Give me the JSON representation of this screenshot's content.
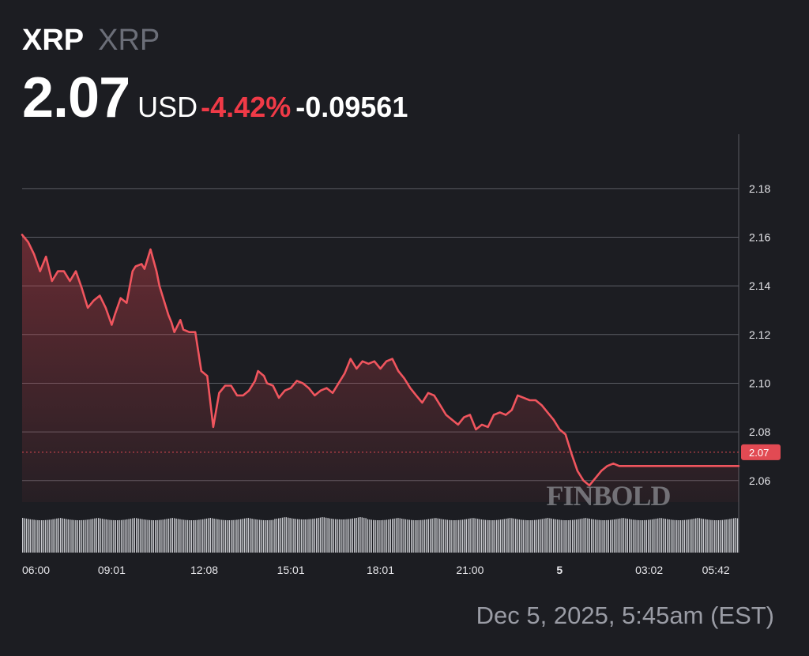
{
  "header": {
    "symbol": "XRP",
    "symbol_secondary": "XRP",
    "price": "2.07",
    "currency": "USD",
    "change_percent": "-4.42%",
    "change_absolute": "-0.09561"
  },
  "watermark": "FINBOLD",
  "timestamp": "Dec 5, 2025, 5:45am (EST)",
  "colors": {
    "background": "#1c1d22",
    "line": "#f0555e",
    "negative": "#f03a47",
    "grid": "#5a5c63",
    "volume": "#c9cacf",
    "current_price_label_bg": "#e24a53"
  },
  "chart_data": {
    "type": "line",
    "title": "",
    "xlabel": "",
    "ylabel": "",
    "ylim": [
      2.045,
      2.19
    ],
    "yticks": [
      2.06,
      2.08,
      2.1,
      2.12,
      2.14,
      2.16,
      2.18
    ],
    "ytick_labels": [
      "2.06",
      "2.08",
      "2.10",
      "2.12",
      "2.14",
      "2.16",
      "2.18"
    ],
    "xticks": [
      0,
      3.0,
      6.1,
      9.0,
      12.0,
      15.0,
      18.0,
      21.0,
      23.7
    ],
    "xtick_labels": [
      "06:00",
      "09:01",
      "12:08",
      "15:01",
      "18:01",
      "21:00",
      "5",
      "03:02",
      "05:42"
    ],
    "current_price": 2.07,
    "current_price_label": "2.07",
    "grid": true,
    "series": [
      {
        "x": [
          0,
          0.2,
          0.4,
          0.6,
          0.8,
          1.0,
          1.2,
          1.4,
          1.6,
          1.8,
          2.0,
          2.2,
          2.4,
          2.6,
          2.8,
          3.0,
          3.1,
          3.3,
          3.5,
          3.7,
          3.8,
          4.0,
          4.1,
          4.3,
          4.5,
          4.6,
          4.8,
          4.9,
          5.0,
          5.1,
          5.3,
          5.4,
          5.6,
          5.8,
          6.0,
          6.2,
          6.4,
          6.6,
          6.8,
          7.0,
          7.2,
          7.4,
          7.6,
          7.8,
          7.9,
          8.1,
          8.2,
          8.4,
          8.6,
          8.8,
          9.0,
          9.2,
          9.4,
          9.6,
          9.8,
          10.0,
          10.2,
          10.4,
          10.6,
          10.8,
          11.0,
          11.2,
          11.4,
          11.6,
          11.8,
          12.0,
          12.2,
          12.4,
          12.6,
          12.8,
          13.0,
          13.2,
          13.4,
          13.6,
          13.8,
          14.0,
          14.2,
          14.4,
          14.6,
          14.8,
          15.0,
          15.2,
          15.4,
          15.6,
          15.8,
          16.0,
          16.2,
          16.4,
          16.6,
          16.8,
          17.0,
          17.2,
          17.4,
          17.6,
          17.8,
          18.0,
          18.2,
          18.4,
          18.6,
          18.8,
          19.0,
          19.2,
          19.4,
          19.6,
          19.8,
          20.0,
          20.2,
          20.4,
          20.6,
          20.8,
          21.0,
          21.2,
          21.4,
          21.6,
          21.8,
          22.0,
          22.2,
          22.4,
          22.6,
          22.8,
          23.0,
          23.2,
          23.4,
          23.6,
          23.8,
          24.0
        ],
        "values": [
          2.161,
          2.158,
          2.153,
          2.146,
          2.152,
          2.142,
          2.146,
          2.146,
          2.142,
          2.146,
          2.139,
          2.131,
          2.134,
          2.136,
          2.131,
          2.124,
          2.128,
          2.135,
          2.133,
          2.146,
          2.148,
          2.149,
          2.147,
          2.155,
          2.146,
          2.14,
          2.132,
          2.128,
          2.125,
          2.121,
          2.126,
          2.122,
          2.121,
          2.121,
          2.105,
          2.103,
          2.082,
          2.096,
          2.099,
          2.099,
          2.095,
          2.095,
          2.097,
          2.101,
          2.105,
          2.103,
          2.1,
          2.099,
          2.094,
          2.097,
          2.098,
          2.101,
          2.1,
          2.098,
          2.095,
          2.097,
          2.098,
          2.096,
          2.1,
          2.104,
          2.11,
          2.106,
          2.109,
          2.108,
          2.109,
          2.106,
          2.109,
          2.11,
          2.105,
          2.102,
          2.098,
          2.095,
          2.092,
          2.096,
          2.095,
          2.091,
          2.087,
          2.085,
          2.083,
          2.086,
          2.087,
          2.081,
          2.083,
          2.082,
          2.087,
          2.088,
          2.087,
          2.089,
          2.095,
          2.094,
          2.093,
          2.093,
          2.091,
          2.088,
          2.085,
          2.081,
          2.079,
          2.071,
          2.064,
          2.06,
          2.058,
          2.061,
          2.064,
          2.066,
          2.067,
          2.066,
          2.066,
          2.066,
          2.066,
          2.066,
          2.066,
          2.066,
          2.066,
          2.066,
          2.066,
          2.066,
          2.066,
          2.066,
          2.066,
          2.066,
          2.066,
          2.066,
          2.066,
          2.066,
          2.066,
          2.066
        ]
      }
    ]
  }
}
